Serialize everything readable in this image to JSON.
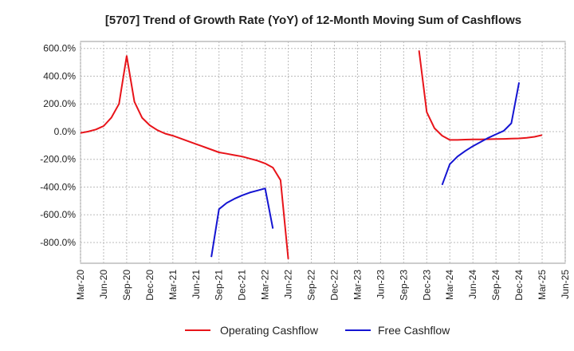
{
  "chart_data": {
    "type": "line",
    "title": "[5707]  Trend of Growth Rate (YoY) of 12-Month Moving Sum of Cashflows",
    "xlabel": "",
    "ylabel": "",
    "ylim": [
      -950,
      650
    ],
    "y_ticks": [
      600,
      400,
      200,
      0,
      -200,
      -400,
      -600,
      -800
    ],
    "y_tick_labels": [
      "600.0%",
      "400.0%",
      "200.0%",
      "0.0%",
      "-200.0%",
      "-400.0%",
      "-600.0%",
      "-800.0%"
    ],
    "x_tick_labels": [
      "Mar-20",
      "Jun-20",
      "Sep-20",
      "Dec-20",
      "Mar-21",
      "Jun-21",
      "Sep-21",
      "Dec-21",
      "Mar-22",
      "Jun-22",
      "Sep-22",
      "Dec-22",
      "Mar-23",
      "Jun-23",
      "Sep-23",
      "Dec-23",
      "Mar-24",
      "Jun-24",
      "Sep-24",
      "Dec-24",
      "Mar-25",
      "Jun-25"
    ],
    "grid": true,
    "legend_position": "bottom",
    "series": [
      {
        "name": "Operating Cashflow",
        "color": "#e8141a",
        "points": [
          [
            "2020-03",
            -10
          ],
          [
            "2020-04",
            0
          ],
          [
            "2020-05",
            15
          ],
          [
            "2020-06",
            40
          ],
          [
            "2020-07",
            100
          ],
          [
            "2020-08",
            200
          ],
          [
            "2020-09",
            545
          ],
          [
            "2020-10",
            215
          ],
          [
            "2020-11",
            100
          ],
          [
            "2020-12",
            45
          ],
          [
            "2021-01",
            10
          ],
          [
            "2021-02",
            -15
          ],
          [
            "2021-03",
            -30
          ],
          [
            "2021-04",
            -50
          ],
          [
            "2021-05",
            -70
          ],
          [
            "2021-06",
            -90
          ],
          [
            "2021-07",
            -110
          ],
          [
            "2021-08",
            -130
          ],
          [
            "2021-09",
            -150
          ],
          [
            "2021-10",
            -160
          ],
          [
            "2021-11",
            -170
          ],
          [
            "2021-12",
            -180
          ],
          [
            "2022-01",
            -195
          ],
          [
            "2022-02",
            -210
          ],
          [
            "2022-03",
            -230
          ],
          [
            "2022-04",
            -260
          ],
          [
            "2022-05",
            -350
          ],
          [
            "2022-06",
            -920
          ]
        ],
        "points_2": [
          [
            "2023-11",
            585
          ],
          [
            "2023-12",
            140
          ],
          [
            "2024-01",
            25
          ],
          [
            "2024-02",
            -30
          ],
          [
            "2024-03",
            -60
          ],
          [
            "2024-04",
            -60
          ],
          [
            "2024-05",
            -58
          ],
          [
            "2024-06",
            -57
          ],
          [
            "2024-07",
            -56
          ],
          [
            "2024-08",
            -55
          ],
          [
            "2024-09",
            -54
          ],
          [
            "2024-10",
            -53
          ],
          [
            "2024-11",
            -51
          ],
          [
            "2024-12",
            -49
          ],
          [
            "2025-01",
            -45
          ],
          [
            "2025-02",
            -38
          ],
          [
            "2025-03",
            -25
          ]
        ]
      },
      {
        "name": "Free Cashflow",
        "color": "#1414d2",
        "points": [
          [
            "2021-08",
            -905
          ],
          [
            "2021-09",
            -560
          ],
          [
            "2021-10",
            -515
          ],
          [
            "2021-11",
            -485
          ],
          [
            "2021-12",
            -460
          ],
          [
            "2022-01",
            -440
          ],
          [
            "2022-02",
            -425
          ],
          [
            "2022-03",
            -410
          ],
          [
            "2022-04",
            -700
          ]
        ],
        "points_2": [
          [
            "2024-02",
            -385
          ],
          [
            "2024-03",
            -235
          ],
          [
            "2024-04",
            -180
          ],
          [
            "2024-05",
            -140
          ],
          [
            "2024-06",
            -105
          ],
          [
            "2024-07",
            -75
          ],
          [
            "2024-08",
            -45
          ],
          [
            "2024-09",
            -20
          ],
          [
            "2024-10",
            5
          ],
          [
            "2024-11",
            60
          ],
          [
            "2024-12",
            355
          ]
        ]
      }
    ]
  }
}
